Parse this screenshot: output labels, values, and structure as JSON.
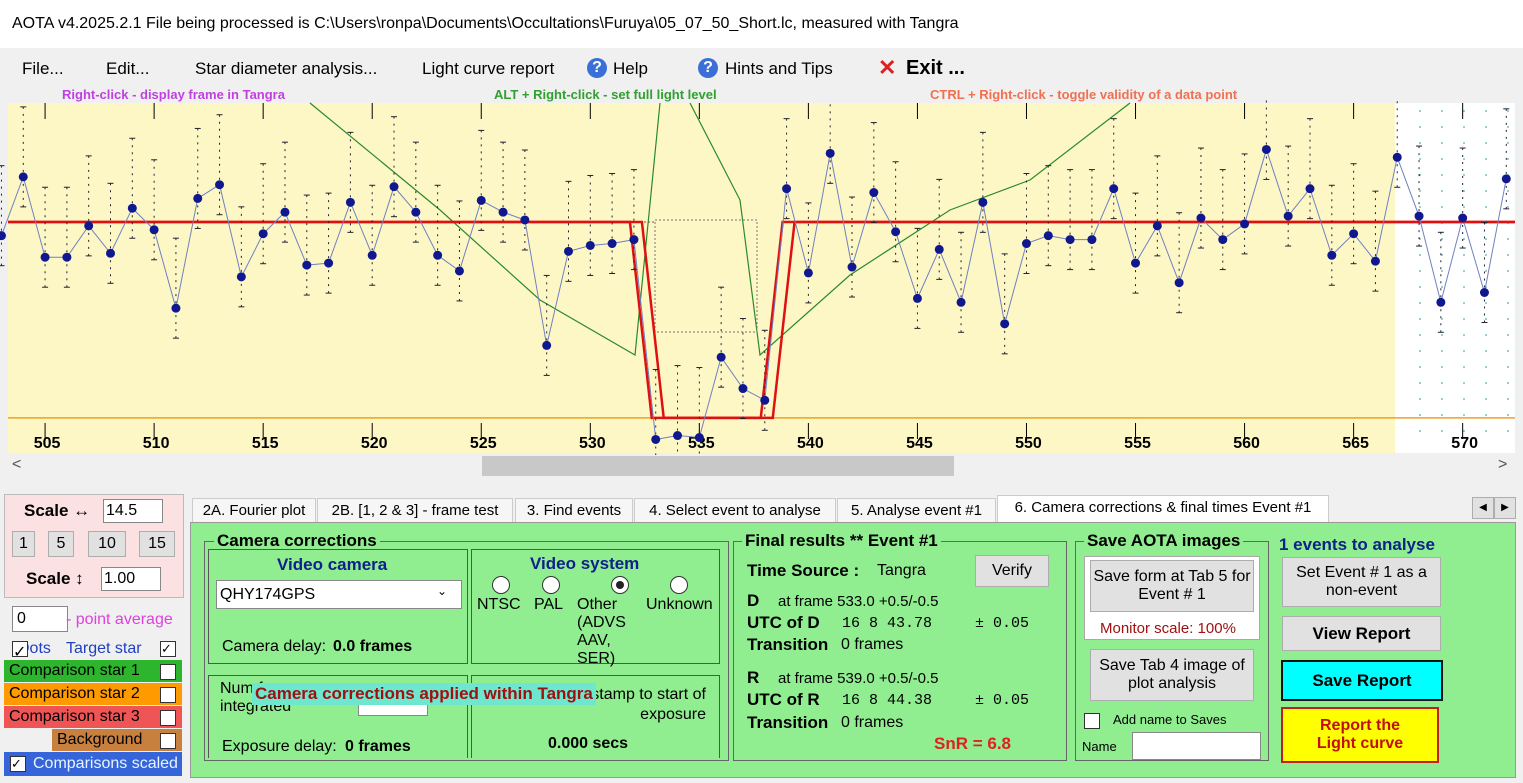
{
  "title_bar": {
    "title": "AOTA v4.2025.2.1    File being processed is C:\\Users\\ronpa\\Documents\\Occultations\\Furuya\\05_07_50_Short.lc, measured with Tangra"
  },
  "menu": {
    "items": [
      "File...",
      "Edit...",
      "Star diameter analysis...",
      "Light curve report",
      "Help",
      "Hints and Tips",
      "Exit ..."
    ]
  },
  "plot": {
    "hints": [
      "Right-click  -  display frame in Tangra",
      "ALT + Right-click  -  set full light level",
      "CTRL + Right-click  -  toggle validity of a data point"
    ],
    "xlim": [
      503.3,
      572.4
    ],
    "ylim": [
      -17.9,
      160.7
    ],
    "xticks": [
      505,
      510,
      515,
      520,
      525,
      530,
      535,
      540,
      545,
      550,
      555,
      560,
      565,
      570
    ],
    "x": [
      503,
      504,
      505,
      506,
      507,
      508,
      509,
      510,
      511,
      512,
      513,
      514,
      515,
      516,
      517,
      518,
      519,
      520,
      521,
      522,
      523,
      524,
      525,
      526,
      527,
      528,
      529,
      530,
      531,
      532,
      533,
      534,
      535,
      536,
      537,
      538,
      539,
      540,
      541,
      542,
      543,
      544,
      545,
      546,
      547,
      548,
      549,
      550,
      551,
      552,
      553,
      554,
      555,
      556,
      557,
      558,
      559,
      560,
      561,
      562,
      563,
      564,
      565,
      566,
      567,
      568,
      569,
      570,
      571,
      572
    ],
    "values": [
      93,
      123,
      82,
      82,
      98,
      84,
      107,
      96,
      56,
      112,
      119,
      72,
      94,
      105,
      78,
      79,
      110,
      83,
      118,
      105,
      83,
      75,
      111,
      105,
      101,
      37,
      85,
      88,
      89,
      91,
      -11,
      -9,
      -10,
      31,
      15,
      9,
      117,
      74,
      135,
      77,
      115,
      95,
      61,
      86,
      59,
      110,
      48,
      89,
      93,
      91,
      91,
      117,
      79,
      98,
      69,
      102,
      91,
      99,
      137,
      103,
      117,
      83,
      94,
      80,
      133,
      103,
      59,
      102,
      64,
      122
    ],
    "model": {
      "full_level": 100,
      "baseline": 0,
      "d": 533,
      "r": 539
    }
  },
  "left_panel": {
    "scale_h_label": "Scale ↔",
    "scale_h": "14.5",
    "buttons": [
      "1",
      "5",
      "10",
      "15"
    ],
    "scale_v_label": "Scale ↕",
    "scale_v": "1.00",
    "average": "0",
    "average_label": "- point average",
    "dots": "Dots",
    "target": "Target star",
    "comparison_1": "Comparison star 1",
    "comparison_2": "Comparison star 2",
    "comparison_3": "Comparison star 3",
    "background": "Background",
    "comparisons_scaled": "Comparisons scaled"
  },
  "tabs": [
    "2A. Fourier plot",
    "2B. [1, 2 & 3] - frame test",
    "3. Find events",
    "4. Select event to analyse",
    "5. Analyse event #1",
    "6. Camera corrections & final times Event #1"
  ],
  "camera": {
    "title": "Camera corrections",
    "video_camera": "Video camera",
    "camera_name": "QHY174GPS",
    "camera_delay_label": "Camera delay:",
    "camera_delay": "0.0 frames",
    "video_system": "Video system",
    "systems": [
      "NTSC",
      "PAL",
      "Other (ADVS AAV, SER)",
      "Unknown"
    ],
    "frames_integrated": "Num frames integrated",
    "applied": "Camera corrections applied within Tangra",
    "stamp_note": "from video stamp to start of exposure",
    "secs": "0.000 secs",
    "exposure_delay_label": "Exposure delay:",
    "exposure_delay": "0 frames"
  },
  "results": {
    "title": "Final results  **  Event #1",
    "time_source_label": "Time Source :",
    "time_source": "Tangra",
    "verify": "Verify",
    "d": "D",
    "d_frame": "at frame 533.0  +0.5/-0.5",
    "utc_d_label": "UTC of D",
    "utc_d": "16   8 43.78",
    "utc_d_err": "± 0.05",
    "transition_label": "Transition",
    "d_transition": "0 frames",
    "r": "R",
    "r_frame": "at frame 539.0  +0.5/-0.5",
    "utc_r_label": "UTC of R",
    "utc_r": "16   8 44.38",
    "utc_r_err": "± 0.05",
    "r_transition": "0 frames",
    "snr": "SnR = 6.8"
  },
  "save": {
    "title": "Save AOTA images",
    "save_form": "Save form at Tab 5 for Event # 1",
    "monitor_scale": "Monitor scale: 100%",
    "save_tab4": "Save Tab 4 image of plot analysis",
    "add_name": "Add name to Saves",
    "name": "Name"
  },
  "actions": {
    "events": "1 events to analyse",
    "non_event": "Set Event # 1 as a non-event",
    "view_report": "View Report",
    "save_report": "Save Report",
    "report_curve": "Report the Light curve"
  }
}
